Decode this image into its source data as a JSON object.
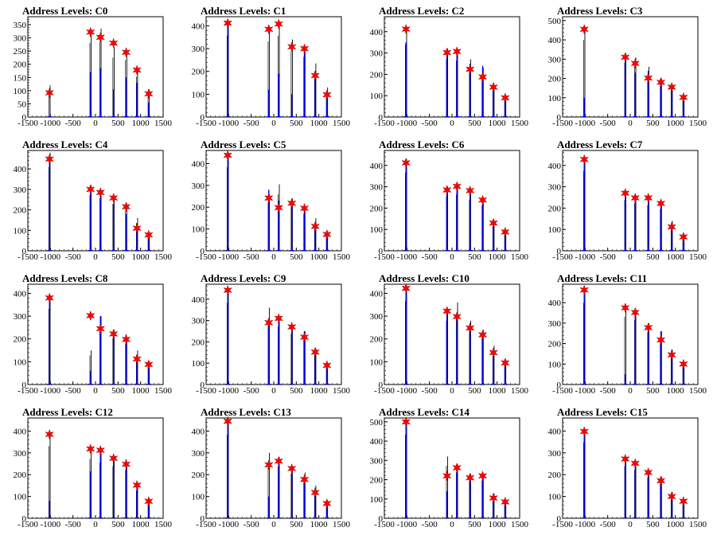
{
  "chart_data": [
    {
      "type": "bar",
      "title": "Address Levels: C0",
      "ylim": [
        0,
        380
      ],
      "yticks": [
        0,
        50,
        100,
        150,
        200,
        250,
        300,
        350
      ],
      "xlim": [
        -1500,
        1500
      ],
      "xticks": [
        -1500,
        -1000,
        -500,
        0,
        500,
        1000,
        1500
      ],
      "peaks_x": [
        -1020,
        -110,
        110,
        400,
        680,
        920,
        1180
      ],
      "peaks_blue": [
        0,
        170,
        185,
        105,
        150,
        130,
        55
      ],
      "peaks_black": [
        120,
        330,
        335,
        265,
        255,
        180,
        105
      ],
      "stars": [
        92,
        322,
        302,
        280,
        245,
        178,
        88
      ]
    },
    {
      "type": "bar",
      "title": "Address Levels: C1",
      "ylim": [
        0,
        440
      ],
      "yticks": [
        0,
        100,
        200,
        300,
        400
      ],
      "xlim": [
        -1500,
        1500
      ],
      "xticks": [
        -1500,
        -1000,
        -500,
        0,
        500,
        1000,
        1500
      ],
      "peaks_x": [
        -1020,
        -110,
        110,
        400,
        680,
        920,
        1180
      ],
      "peaks_blue": [
        410,
        120,
        190,
        100,
        300,
        190,
        80
      ],
      "peaks_black": [
        420,
        390,
        420,
        340,
        310,
        235,
        130
      ],
      "stars": [
        412,
        385,
        408,
        308,
        300,
        182,
        98
      ]
    },
    {
      "type": "bar",
      "title": "Address Levels: C2",
      "ylim": [
        0,
        470
      ],
      "yticks": [
        0,
        100,
        200,
        300,
        400
      ],
      "xlim": [
        -1500,
        1500
      ],
      "xticks": [
        -1500,
        -1000,
        -500,
        0,
        500,
        1000,
        1500
      ],
      "peaks_x": [
        -1020,
        -110,
        110,
        400,
        680,
        920,
        1180
      ],
      "peaks_blue": [
        350,
        310,
        290,
        250,
        240,
        160,
        90
      ],
      "peaks_black": [
        400,
        320,
        310,
        270,
        230,
        150,
        100
      ],
      "stars": [
        412,
        302,
        307,
        224,
        188,
        140,
        90
      ]
    },
    {
      "type": "bar",
      "title": "Address Levels: C3",
      "ylim": [
        0,
        520
      ],
      "yticks": [
        0,
        100,
        200,
        300,
        400,
        500
      ],
      "xlim": [
        -1500,
        1500
      ],
      "xticks": [
        -1500,
        -1000,
        -500,
        0,
        500,
        1000,
        1500
      ],
      "peaks_x": [
        -1020,
        -110,
        110,
        400,
        680,
        920,
        1180
      ],
      "peaks_blue": [
        100,
        300,
        230,
        240,
        200,
        160,
        110
      ],
      "peaks_black": [
        470,
        330,
        310,
        260,
        200,
        170,
        110
      ],
      "stars": [
        455,
        310,
        278,
        202,
        180,
        155,
        102
      ]
    },
    {
      "type": "bar",
      "title": "Address Levels: C4",
      "ylim": [
        0,
        490
      ],
      "yticks": [
        0,
        100,
        200,
        300,
        400
      ],
      "xlim": [
        -1500,
        1500
      ],
      "xticks": [
        -1500,
        -1000,
        -500,
        0,
        500,
        1000,
        1500
      ],
      "peaks_x": [
        -1020,
        -110,
        110,
        400,
        680,
        920,
        1180
      ],
      "peaks_blue": [
        460,
        300,
        280,
        230,
        180,
        110,
        80
      ],
      "peaks_black": [
        480,
        320,
        300,
        270,
        230,
        160,
        90
      ],
      "stars": [
        448,
        300,
        285,
        258,
        215,
        110,
        78
      ]
    },
    {
      "type": "bar",
      "title": "Address Levels: C5",
      "ylim": [
        0,
        460
      ],
      "yticks": [
        0,
        100,
        200,
        300,
        400
      ],
      "xlim": [
        -1500,
        1500
      ],
      "xticks": [
        -1500,
        -1000,
        -500,
        0,
        500,
        1000,
        1500
      ],
      "peaks_x": [
        -1020,
        -110,
        110,
        400,
        680,
        920,
        1180
      ],
      "peaks_blue": [
        440,
        280,
        230,
        220,
        200,
        110,
        80
      ],
      "peaks_black": [
        450,
        260,
        305,
        240,
        200,
        150,
        90
      ],
      "stars": [
        438,
        242,
        198,
        218,
        195,
        112,
        75
      ]
    },
    {
      "type": "bar",
      "title": "Address Levels: C6",
      "ylim": [
        0,
        470
      ],
      "yticks": [
        0,
        100,
        200,
        300,
        400
      ],
      "xlim": [
        -1500,
        1500
      ],
      "xticks": [
        -1500,
        -1000,
        -500,
        0,
        500,
        1000,
        1500
      ],
      "peaks_x": [
        -1020,
        -110,
        110,
        400,
        680,
        920,
        1180
      ],
      "peaks_blue": [
        420,
        280,
        300,
        280,
        230,
        130,
        90
      ],
      "peaks_black": [
        430,
        300,
        310,
        280,
        250,
        140,
        90
      ],
      "stars": [
        412,
        285,
        302,
        282,
        238,
        130,
        88
      ]
    },
    {
      "type": "bar",
      "title": "Address Levels: C7",
      "ylim": [
        0,
        470
      ],
      "yticks": [
        0,
        100,
        200,
        300,
        400
      ],
      "xlim": [
        -1500,
        1500
      ],
      "xticks": [
        -1500,
        -1000,
        -500,
        0,
        500,
        1000,
        1500
      ],
      "peaks_x": [
        -1020,
        -110,
        110,
        400,
        680,
        920,
        1180
      ],
      "peaks_blue": [
        430,
        270,
        250,
        240,
        220,
        100,
        50
      ],
      "peaks_black": [
        440,
        280,
        260,
        250,
        230,
        140,
        80
      ],
      "stars": [
        428,
        270,
        248,
        248,
        222,
        112,
        65
      ]
    },
    {
      "type": "bar",
      "title": "Address Levels: C8",
      "ylim": [
        0,
        440
      ],
      "yticks": [
        0,
        100,
        200,
        300,
        400
      ],
      "xlim": [
        -1500,
        1500
      ],
      "xticks": [
        -1500,
        -1000,
        -500,
        0,
        500,
        1000,
        1500
      ],
      "peaks_x": [
        -1020,
        -110,
        110,
        400,
        680,
        920,
        1180
      ],
      "peaks_blue": [
        380,
        60,
        300,
        230,
        220,
        130,
        80
      ],
      "peaks_black": [
        390,
        150,
        300,
        240,
        210,
        150,
        90
      ],
      "stars": [
        380,
        302,
        245,
        222,
        198,
        112,
        88
      ]
    },
    {
      "type": "bar",
      "title": "Address Levels: C9",
      "ylim": [
        0,
        470
      ],
      "yticks": [
        0,
        100,
        200,
        300,
        400
      ],
      "xlim": [
        -1500,
        1500
      ],
      "xticks": [
        -1500,
        -1000,
        -500,
        0,
        500,
        1000,
        1500
      ],
      "peaks_x": [
        -1020,
        -110,
        110,
        400,
        680,
        920,
        1180
      ],
      "peaks_blue": [
        440,
        300,
        310,
        270,
        250,
        150,
        100
      ],
      "peaks_black": [
        450,
        360,
        320,
        280,
        250,
        170,
        100
      ],
      "stars": [
        442,
        290,
        310,
        270,
        222,
        152,
        90
      ]
    },
    {
      "type": "bar",
      "title": "Address Levels: C10",
      "ylim": [
        0,
        440
      ],
      "yticks": [
        0,
        100,
        200,
        300,
        400
      ],
      "xlim": [
        -1500,
        1500
      ],
      "xticks": [
        -1500,
        -1000,
        -500,
        0,
        500,
        1000,
        1500
      ],
      "peaks_x": [
        -1020,
        -110,
        110,
        400,
        680,
        920,
        1180
      ],
      "peaks_blue": [
        420,
        320,
        280,
        270,
        230,
        160,
        100
      ],
      "peaks_black": [
        430,
        330,
        360,
        280,
        240,
        170,
        110
      ],
      "stars": [
        422,
        322,
        298,
        248,
        218,
        140,
        95
      ]
    },
    {
      "type": "bar",
      "title": "Address Levels: C11",
      "ylim": [
        0,
        490
      ],
      "yticks": [
        0,
        100,
        200,
        300,
        400
      ],
      "xlim": [
        -1500,
        1500
      ],
      "xticks": [
        -1500,
        -1000,
        -500,
        0,
        500,
        1000,
        1500
      ],
      "peaks_x": [
        -1020,
        -110,
        110,
        400,
        680,
        920,
        1180
      ],
      "peaks_blue": [
        460,
        50,
        360,
        290,
        260,
        170,
        110
      ],
      "peaks_black": [
        470,
        390,
        370,
        300,
        260,
        170,
        110
      ],
      "stars": [
        462,
        375,
        352,
        278,
        218,
        145,
        100
      ]
    },
    {
      "type": "bar",
      "title": "Address Levels: C12",
      "ylim": [
        0,
        460
      ],
      "yticks": [
        0,
        100,
        200,
        300,
        400
      ],
      "xlim": [
        -1500,
        1500
      ],
      "xticks": [
        -1500,
        -1000,
        -500,
        0,
        500,
        1000,
        1500
      ],
      "peaks_x": [
        -1020,
        -110,
        110,
        400,
        680,
        920,
        1180
      ],
      "peaks_blue": [
        80,
        215,
        320,
        290,
        270,
        140,
        90
      ],
      "peaks_black": [
        390,
        320,
        300,
        280,
        260,
        150,
        90
      ],
      "stars": [
        385,
        318,
        312,
        275,
        248,
        152,
        78
      ]
    },
    {
      "type": "bar",
      "title": "Address Levels: C13",
      "ylim": [
        0,
        460
      ],
      "yticks": [
        0,
        100,
        200,
        300,
        400
      ],
      "xlim": [
        -1500,
        1500
      ],
      "xticks": [
        -1500,
        -1000,
        -500,
        0,
        500,
        1000,
        1500
      ],
      "peaks_x": [
        -1020,
        -110,
        110,
        400,
        680,
        920,
        1180
      ],
      "peaks_blue": [
        440,
        100,
        260,
        220,
        190,
        140,
        60
      ],
      "peaks_black": [
        450,
        300,
        280,
        240,
        210,
        150,
        80
      ],
      "stars": [
        445,
        245,
        262,
        228,
        178,
        118,
        68
      ]
    },
    {
      "type": "bar",
      "title": "Address Levels: C14",
      "ylim": [
        0,
        520
      ],
      "yticks": [
        0,
        100,
        200,
        300,
        400,
        500
      ],
      "xlim": [
        -1500,
        1500
      ],
      "xticks": [
        -1500,
        -1000,
        -500,
        0,
        500,
        1000,
        1500
      ],
      "peaks_x": [
        -1020,
        -110,
        110,
        400,
        680,
        920,
        1180
      ],
      "peaks_blue": [
        500,
        140,
        250,
        220,
        210,
        110,
        80
      ],
      "peaks_black": [
        510,
        320,
        280,
        230,
        230,
        130,
        90
      ],
      "stars": [
        500,
        220,
        262,
        210,
        220,
        105,
        85
      ]
    },
    {
      "type": "bar",
      "title": "Address Levels: C15",
      "ylim": [
        0,
        460
      ],
      "yticks": [
        0,
        100,
        200,
        300,
        400
      ],
      "xlim": [
        -1500,
        1500
      ],
      "xticks": [
        -1500,
        -1000,
        -500,
        0,
        500,
        1000,
        1500
      ],
      "peaks_x": [
        -1020,
        -110,
        110,
        400,
        680,
        920,
        1180
      ],
      "peaks_blue": [
        400,
        260,
        250,
        210,
        180,
        100,
        80
      ],
      "peaks_black": [
        410,
        280,
        260,
        220,
        190,
        120,
        90
      ],
      "stars": [
        398,
        272,
        252,
        210,
        172,
        100,
        78
      ]
    }
  ],
  "colors": {
    "blue": "#0000ff",
    "black": "#000000",
    "star": "#ff0000",
    "axis": "#000000"
  }
}
